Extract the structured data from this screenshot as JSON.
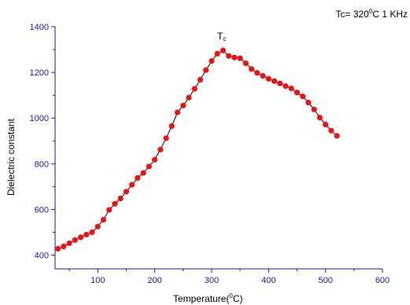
{
  "chart_data": {
    "type": "scatter",
    "xlabel_parts": [
      "Temperature(",
      "0",
      "C)"
    ],
    "ylabel": "Dielectric constant",
    "annotation_note_parts": [
      "Tc= 320",
      "0",
      "C  1 KHz"
    ],
    "annotation_tc": [
      "T",
      "c"
    ],
    "xlim": [
      25,
      600
    ],
    "ylim": [
      340,
      1400
    ],
    "xticks": [
      100,
      200,
      300,
      400,
      500,
      600
    ],
    "yticks": [
      400,
      600,
      800,
      1000,
      1200,
      1400
    ],
    "colors": {
      "points": "#ee1111",
      "axis": "#1a1aa6",
      "line": "#000000"
    },
    "series": [
      {
        "x": [
          30,
          40,
          50,
          60,
          70,
          80,
          90,
          100,
          110,
          120,
          130,
          140,
          150,
          160,
          170,
          180,
          190,
          200,
          210,
          220,
          230,
          240,
          250,
          260,
          270,
          280,
          290,
          300,
          310,
          320,
          330,
          340,
          350,
          360,
          370,
          380,
          390,
          400,
          410,
          420,
          430,
          440,
          450,
          460,
          470,
          480,
          490,
          500,
          510,
          520
        ],
        "y": [
          428,
          438,
          452,
          466,
          478,
          490,
          500,
          525,
          555,
          598,
          625,
          648,
          678,
          708,
          738,
          760,
          788,
          818,
          862,
          912,
          965,
          1025,
          1055,
          1090,
          1128,
          1168,
          1210,
          1250,
          1282,
          1296,
          1272,
          1265,
          1262,
          1240,
          1215,
          1198,
          1185,
          1172,
          1162,
          1152,
          1140,
          1130,
          1112,
          1095,
          1068,
          1038,
          1002,
          972,
          945,
          922
        ]
      }
    ]
  }
}
